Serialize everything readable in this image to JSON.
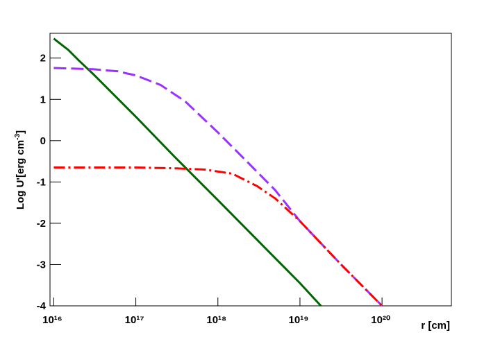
{
  "chart_data": {
    "type": "line",
    "x_label": "r [cm]",
    "y_label": [
      "Log U'[erg cm",
      "-3",
      "]"
    ],
    "log_x": true,
    "xlim": [
      9000000000000000.0,
      7e+20
    ],
    "xticks": [
      {
        "value": 1e+16,
        "label": "10¹⁶"
      },
      {
        "value": 1e+17,
        "label": "10¹⁷"
      },
      {
        "value": 1e+18,
        "label": "10¹⁸"
      },
      {
        "value": 1e+19,
        "label": "10¹⁹"
      },
      {
        "value": 1e+20,
        "label": "10²⁰"
      }
    ],
    "ylim": [
      -4,
      2.6
    ],
    "yticks": [
      -4,
      -3,
      -2,
      -1,
      0,
      1,
      2
    ],
    "series": [
      {
        "color": "#006400",
        "dash": "none",
        "x": [
          1e+16,
          1.5e+16,
          2e+16,
          3e+16,
          1e+17,
          3e+17,
          1e+18,
          3e+18,
          1e+19,
          1.8e+19
        ],
        "values": [
          2.47,
          2.2,
          1.95,
          1.62,
          0.58,
          -0.4,
          -1.44,
          -2.4,
          -3.45,
          -4
        ]
      },
      {
        "color": "#9b30ff",
        "dash": "18,7",
        "x": [
          1e+16,
          3e+16,
          6e+16,
          1e+17,
          2e+17,
          4e+17,
          1e+18,
          2e+18,
          5e+18,
          1e+19,
          3e+19,
          1e+20
        ],
        "values": [
          1.76,
          1.73,
          1.68,
          1.58,
          1.35,
          0.95,
          0.2,
          -0.4,
          -1.2,
          -1.95,
          -2.95,
          -4
        ]
      },
      {
        "color": "#ff0000",
        "dash": "16,5,3,5",
        "x": [
          1e+16,
          1e+17,
          3e+17,
          7e+17,
          1.5e+18,
          3e+18,
          5e+18,
          1e+19,
          3e+19,
          1e+20
        ],
        "values": [
          -0.65,
          -0.65,
          -0.67,
          -0.7,
          -0.8,
          -1.1,
          -1.4,
          -1.95,
          -2.95,
          -4
        ]
      }
    ]
  }
}
